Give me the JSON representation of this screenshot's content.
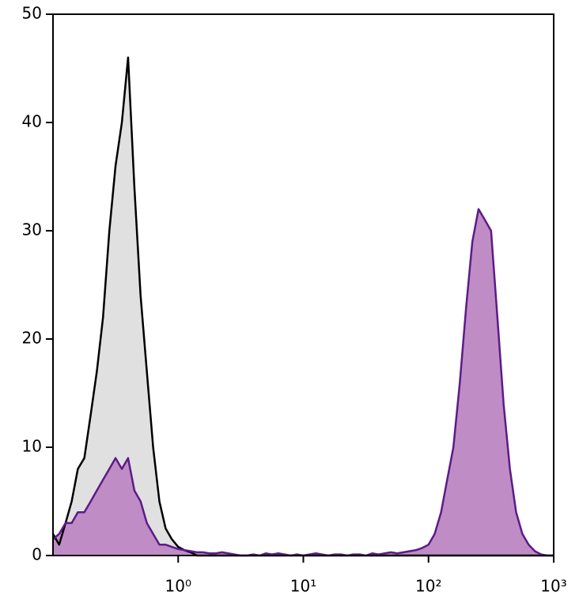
{
  "chart_data": {
    "type": "area",
    "xscale": "log",
    "xlim": [
      0.1,
      1000
    ],
    "xticks": [
      {
        "value": 1,
        "label": "10⁰"
      },
      {
        "value": 10,
        "label": "10¹"
      },
      {
        "value": 100,
        "label": "10²"
      },
      {
        "value": 1000,
        "label": "10³"
      }
    ],
    "ylim": [
      0,
      50
    ],
    "yticks": [
      0,
      10,
      20,
      30,
      40,
      50
    ],
    "x": [
      0.1,
      0.112,
      0.126,
      0.141,
      0.158,
      0.178,
      0.2,
      0.224,
      0.251,
      0.282,
      0.316,
      0.355,
      0.398,
      0.447,
      0.501,
      0.562,
      0.631,
      0.708,
      0.794,
      0.891,
      1,
      1.12,
      1.26,
      1.41,
      1.58,
      1.78,
      2,
      2.24,
      2.51,
      2.82,
      3.16,
      3.55,
      3.98,
      4.47,
      5.01,
      5.62,
      6.31,
      7.08,
      7.94,
      8.91,
      10,
      11.2,
      12.6,
      14.1,
      15.8,
      17.8,
      20,
      22.4,
      25.1,
      28.2,
      31.6,
      35.5,
      39.8,
      44.7,
      50.1,
      56.2,
      63.1,
      70.8,
      79.4,
      89.1,
      100,
      112,
      126,
      141,
      158,
      178,
      200,
      224,
      251,
      282,
      316,
      355,
      398,
      447,
      501,
      562,
      631,
      708,
      794,
      891,
      1000
    ],
    "series": [
      {
        "color": "#000000",
        "fill": "#e0e0e0",
        "values": [
          2,
          1,
          3,
          5,
          8,
          9,
          13,
          17,
          22,
          30,
          36,
          40,
          46,
          34,
          24,
          17,
          10,
          5,
          2.5,
          1.5,
          0.8,
          0.5,
          0.3,
          0,
          0,
          0,
          0,
          0,
          0,
          0,
          0,
          0,
          0,
          0,
          0,
          0,
          0,
          0,
          0,
          0,
          0,
          0,
          0,
          0,
          0,
          0,
          0,
          0,
          0,
          0,
          0,
          0,
          0,
          0,
          0,
          0,
          0,
          0,
          0,
          0,
          0,
          0,
          0,
          0,
          0,
          0,
          0,
          0,
          0,
          0,
          0,
          0,
          0,
          0,
          0,
          0,
          0,
          0,
          0,
          0,
          0
        ]
      },
      {
        "color": "#5b1c86",
        "fill": "#c08cc6",
        "values": [
          1.5,
          2,
          3,
          3,
          4,
          4,
          5,
          6,
          7,
          8,
          9,
          8,
          9,
          6,
          5,
          3,
          2,
          1,
          1,
          0.8,
          0.6,
          0.5,
          0.4,
          0.3,
          0.3,
          0.2,
          0.2,
          0.3,
          0.2,
          0.1,
          0,
          0,
          0.1,
          0,
          0.2,
          0.1,
          0.2,
          0.1,
          0,
          0.1,
          0,
          0.1,
          0.2,
          0.1,
          0,
          0.1,
          0.1,
          0,
          0.1,
          0.1,
          0,
          0.2,
          0.1,
          0.2,
          0.3,
          0.2,
          0.3,
          0.4,
          0.5,
          0.7,
          1,
          2,
          4,
          7,
          10,
          16,
          23,
          29,
          32,
          31,
          30,
          22,
          14,
          8,
          4,
          2,
          1,
          0.4,
          0.1,
          0,
          0
        ]
      }
    ]
  }
}
